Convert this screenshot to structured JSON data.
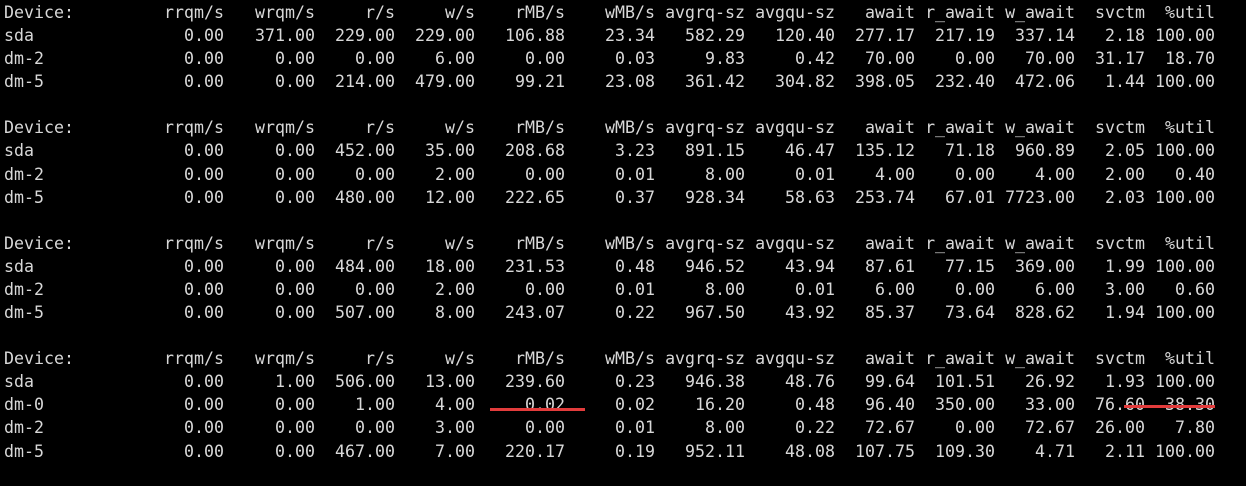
{
  "headers": [
    "Device:",
    "rrqm/s",
    "wrqm/s",
    "r/s",
    "w/s",
    "rMB/s",
    "wMB/s",
    "avgrq-sz",
    "avgqu-sz",
    "await",
    "r_await",
    "w_await",
    "svctm",
    "%util"
  ],
  "blocks": [
    {
      "rows": [
        [
          "sda",
          "0.00",
          "371.00",
          "229.00",
          "229.00",
          "106.88",
          "23.34",
          "582.29",
          "120.40",
          "277.17",
          "217.19",
          "337.14",
          "2.18",
          "100.00"
        ],
        [
          "dm-2",
          "0.00",
          "0.00",
          "0.00",
          "6.00",
          "0.00",
          "0.03",
          "9.83",
          "0.42",
          "70.00",
          "0.00",
          "70.00",
          "31.17",
          "18.70"
        ],
        [
          "dm-5",
          "0.00",
          "0.00",
          "214.00",
          "479.00",
          "99.21",
          "23.08",
          "361.42",
          "304.82",
          "398.05",
          "232.40",
          "472.06",
          "1.44",
          "100.00"
        ]
      ]
    },
    {
      "rows": [
        [
          "sda",
          "0.00",
          "0.00",
          "452.00",
          "35.00",
          "208.68",
          "3.23",
          "891.15",
          "46.47",
          "135.12",
          "71.18",
          "960.89",
          "2.05",
          "100.00"
        ],
        [
          "dm-2",
          "0.00",
          "0.00",
          "0.00",
          "2.00",
          "0.00",
          "0.01",
          "8.00",
          "0.01",
          "4.00",
          "0.00",
          "4.00",
          "2.00",
          "0.40"
        ],
        [
          "dm-5",
          "0.00",
          "0.00",
          "480.00",
          "12.00",
          "222.65",
          "0.37",
          "928.34",
          "58.63",
          "253.74",
          "67.01",
          "7723.00",
          "2.03",
          "100.00"
        ]
      ]
    },
    {
      "rows": [
        [
          "sda",
          "0.00",
          "0.00",
          "484.00",
          "18.00",
          "231.53",
          "0.48",
          "946.52",
          "43.94",
          "87.61",
          "77.15",
          "369.00",
          "1.99",
          "100.00"
        ],
        [
          "dm-2",
          "0.00",
          "0.00",
          "0.00",
          "2.00",
          "0.00",
          "0.01",
          "8.00",
          "0.01",
          "6.00",
          "0.00",
          "6.00",
          "3.00",
          "0.60"
        ],
        [
          "dm-5",
          "0.00",
          "0.00",
          "507.00",
          "8.00",
          "243.07",
          "0.22",
          "967.50",
          "43.92",
          "85.37",
          "73.64",
          "828.62",
          "1.94",
          "100.00"
        ]
      ]
    },
    {
      "rows": [
        [
          "sda",
          "0.00",
          "1.00",
          "506.00",
          "13.00",
          "239.60",
          "0.23",
          "946.38",
          "48.76",
          "99.64",
          "101.51",
          "26.92",
          "1.93",
          "100.00"
        ],
        [
          "dm-0",
          "0.00",
          "0.00",
          "1.00",
          "4.00",
          "0.02",
          "0.02",
          "16.20",
          "0.48",
          "96.40",
          "350.00",
          "33.00",
          "76.60",
          "38.30"
        ],
        [
          "dm-2",
          "0.00",
          "0.00",
          "0.00",
          "3.00",
          "0.00",
          "0.01",
          "8.00",
          "0.22",
          "72.67",
          "0.00",
          "72.67",
          "26.00",
          "7.80"
        ],
        [
          "dm-5",
          "0.00",
          "0.00",
          "467.00",
          "7.00",
          "220.17",
          "0.19",
          "952.11",
          "48.08",
          "107.75",
          "109.30",
          "4.71",
          "2.11",
          "100.00"
        ]
      ]
    }
  ],
  "colors": {
    "background": "#000000",
    "text": "#d8d8d8",
    "highlight_underline": "#e23c3c"
  }
}
